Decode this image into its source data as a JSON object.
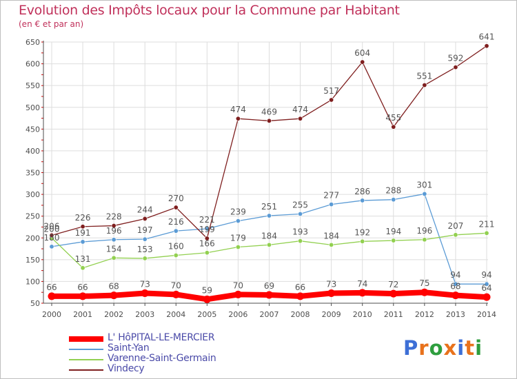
{
  "title": "Evolution des Impôts locaux pour la Commune par Habitant",
  "subtitle": "(en € et par an)",
  "colors": {
    "title": "#c0305a",
    "axis": "#4d4d4d",
    "grid": "#dddddd",
    "label": "#555555",
    "legend_text": "#4a4aa8"
  },
  "logo": {
    "text": "Proxiti",
    "colors": [
      "#3d6fd6",
      "#e8721c",
      "#2e9e3e",
      "#e8721c",
      "#3d6fd6",
      "#e8721c",
      "#2e9e3e"
    ]
  },
  "chart_data": {
    "type": "line",
    "title": "Evolution des Impôts locaux pour la Commune par Habitant",
    "subtitle": "(en € et par an)",
    "xlabel": "",
    "ylabel": "",
    "x": [
      2000,
      2001,
      2002,
      2003,
      2004,
      2005,
      2006,
      2007,
      2008,
      2009,
      2010,
      2011,
      2012,
      2013,
      2014
    ],
    "ylim": [
      50,
      650
    ],
    "yticks": [
      50,
      100,
      150,
      200,
      250,
      300,
      350,
      400,
      450,
      500,
      550,
      600,
      650
    ],
    "grid": true,
    "legend_position": "bottom-left",
    "series": [
      {
        "name": "L' HôPITAL-LE-MERCIER",
        "color": "#ff0000",
        "thick": true,
        "values": [
          66,
          66,
          68,
          73,
          70,
          59,
          70,
          69,
          66,
          73,
          74,
          72,
          75,
          68,
          64
        ]
      },
      {
        "name": "Saint-Yan",
        "color": "#5b9bd5",
        "thick": false,
        "values": [
          180,
          191,
          196,
          197,
          216,
          221,
          239,
          251,
          255,
          277,
          286,
          288,
          301,
          94,
          94
        ]
      },
      {
        "name": "Varenne-Saint-Germain",
        "color": "#92d050",
        "thick": false,
        "values": [
          200,
          131,
          154,
          153,
          160,
          166,
          179,
          184,
          193,
          184,
          192,
          194,
          196,
          207,
          211
        ]
      },
      {
        "name": "Vindecy",
        "color": "#7f1f1f",
        "thick": false,
        "values": [
          206,
          226,
          228,
          244,
          270,
          199,
          474,
          469,
          474,
          517,
          604,
          455,
          551,
          592,
          641
        ]
      }
    ]
  }
}
